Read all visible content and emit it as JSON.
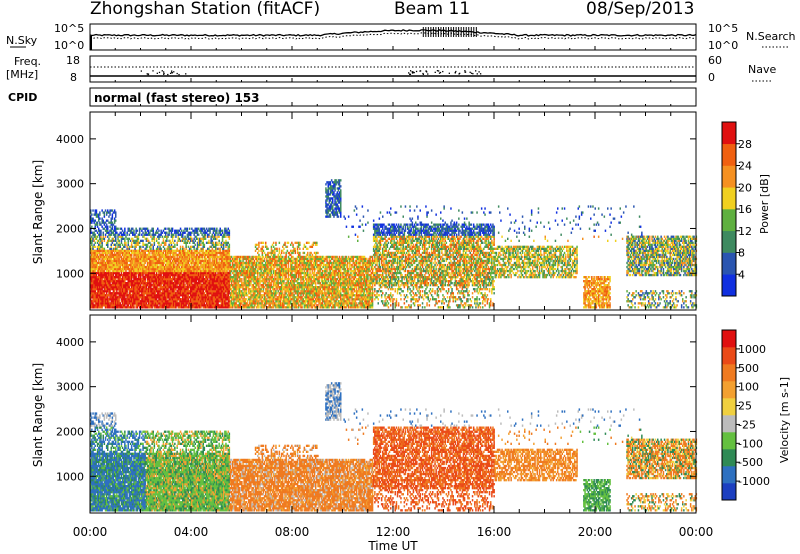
{
  "header": {
    "title": "Zhongshan Station (fitACF)",
    "beam": "Beam 11",
    "date": "08/Sep/2013"
  },
  "top_panels": {
    "nsky_label": "N.Sky",
    "nsky_ticks": [
      "10^5",
      "10^0"
    ],
    "nsearch_label": "N.Search",
    "nsearch_ticks": [
      "10^5",
      "10^0"
    ],
    "freq_label_1": "Freq.",
    "freq_label_2": "[MHz]",
    "freq_ticks": [
      "18",
      "8"
    ],
    "nave_label": "Nave",
    "nave_ticks": [
      "60",
      "0"
    ],
    "cpid_label": "CPID",
    "cpid_text": "normal (fast stereo) 153"
  },
  "colors": {
    "power_scale": [
      "#1030e0",
      "#2a55b0",
      "#3e8a60",
      "#5fb040",
      "#f0d020",
      "#f59020",
      "#f06010",
      "#e01010"
    ],
    "velocity_scale": [
      "#1c3fc0",
      "#2e70c0",
      "#2f8a55",
      "#64c040",
      "#bcbcbc",
      "#f0d040",
      "#f3a030",
      "#ef7a20",
      "#ea4a18",
      "#e01010"
    ]
  },
  "chart_data": [
    {
      "type": "heatmap",
      "name": "power-panel",
      "ylabel": "Slant Range [km]",
      "ylim": [
        180,
        4600
      ],
      "xlim": [
        0,
        24
      ],
      "x_ticks": [
        "00:00",
        "04:00",
        "08:00",
        "12:00",
        "16:00",
        "20:00",
        "00:00"
      ],
      "y_ticks": [
        1000,
        2000,
        3000,
        4000
      ],
      "colorbar": {
        "label": "Power [dB]",
        "ticks": [
          "28",
          "24",
          "20",
          "16",
          "12",
          "8",
          "4"
        ]
      }
    },
    {
      "type": "heatmap",
      "name": "velocity-panel",
      "ylabel": "Slant Range [km]",
      "xlabel": "Time UT",
      "ylim": [
        180,
        4600
      ],
      "xlim": [
        0,
        24
      ],
      "x_ticks": [
        "00:00",
        "04:00",
        "08:00",
        "12:00",
        "16:00",
        "20:00",
        "00:00"
      ],
      "y_ticks": [
        1000,
        2000,
        3000,
        4000
      ],
      "colorbar": {
        "label": "Velocity [m s-1]",
        "ticks": [
          "1000",
          "500",
          "100",
          "25",
          "-25",
          "-100",
          "-500",
          "-1000"
        ]
      }
    }
  ]
}
